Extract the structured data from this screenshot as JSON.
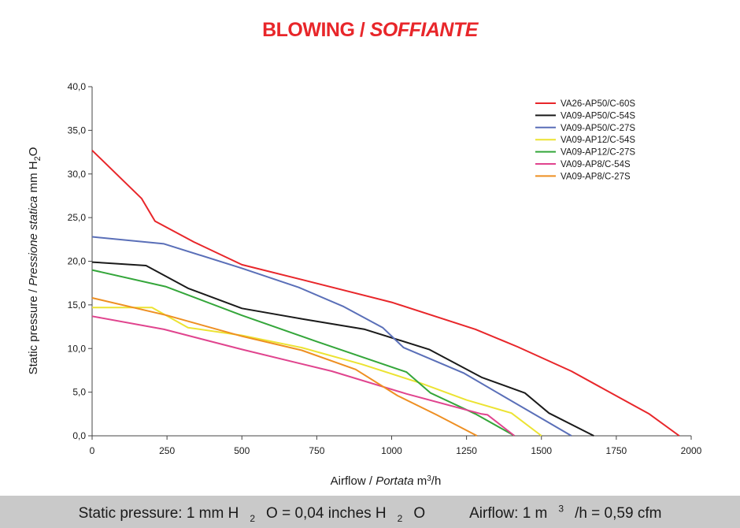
{
  "title": {
    "main": "BLOWING / ",
    "italic": "SOFFIANTE"
  },
  "chart_data": {
    "type": "line",
    "title": "BLOWING / SOFFIANTE",
    "xlabel": "Airflow / Portata m³/h",
    "ylabel": "Static pressure / Pressione statica mm H₂O",
    "xlim": [
      0,
      2000
    ],
    "ylim": [
      0,
      40
    ],
    "xticks": [
      "0",
      "250",
      "500",
      "750",
      "1000",
      "1250",
      "1500",
      "1750",
      "2000"
    ],
    "yticks": [
      "0,0",
      "5,0",
      "10,0",
      "15,0",
      "20,0",
      "25,0",
      "30,0",
      "35,0",
      "40,0"
    ],
    "grid": false,
    "legend": "top-right",
    "series": [
      {
        "name": "VA26-AP50/C-60S",
        "color": "#e8262a",
        "x": [
          0,
          165,
          210,
          340,
          500,
          700,
          1000,
          1280,
          1420,
          1600,
          1860,
          1960
        ],
        "y": [
          32.7,
          27.2,
          24.6,
          22.2,
          19.6,
          17.9,
          15.3,
          12.2,
          10.2,
          7.4,
          2.5,
          0
        ]
      },
      {
        "name": "VA09-AP50/C-54S",
        "color": "#1a1a1a",
        "x": [
          0,
          180,
          320,
          500,
          700,
          910,
          1125,
          1300,
          1445,
          1525,
          1675
        ],
        "y": [
          19.9,
          19.5,
          16.9,
          14.6,
          13.4,
          12.2,
          9.9,
          6.7,
          4.9,
          2.6,
          0
        ]
      },
      {
        "name": "VA09-AP50/C-27S",
        "color": "#5a6fb8",
        "x": [
          0,
          240,
          500,
          690,
          840,
          970,
          1040,
          1240,
          1500,
          1600
        ],
        "y": [
          22.8,
          22.0,
          19.2,
          17.0,
          14.8,
          12.4,
          10.1,
          7.2,
          2.0,
          0
        ]
      },
      {
        "name": "VA09-AP12/C-54S",
        "color": "#ece332",
        "x": [
          0,
          200,
          320,
          500,
          700,
          900,
          1100,
          1250,
          1400,
          1500
        ],
        "y": [
          14.7,
          14.7,
          12.4,
          11.5,
          10.1,
          8.2,
          6.0,
          4.1,
          2.6,
          0
        ]
      },
      {
        "name": "VA09-AP12/C-27S",
        "color": "#34a63a",
        "x": [
          0,
          245,
          500,
          750,
          1050,
          1130,
          1280,
          1410
        ],
        "y": [
          19.0,
          17.1,
          13.8,
          10.8,
          7.3,
          4.9,
          2.5,
          0
        ]
      },
      {
        "name": "VA09-AP8/C-54S",
        "color": "#e0448e",
        "x": [
          0,
          240,
          500,
          800,
          1050,
          1300,
          1320,
          1410
        ],
        "y": [
          13.7,
          12.2,
          9.9,
          7.4,
          4.8,
          2.5,
          2.4,
          0
        ]
      },
      {
        "name": "VA09-AP8/C-27S",
        "color": "#ee8f22",
        "x": [
          0,
          250,
          500,
          700,
          880,
          1020,
          1150,
          1285
        ],
        "y": [
          15.8,
          13.8,
          11.4,
          9.8,
          7.6,
          4.6,
          2.4,
          0
        ]
      }
    ]
  },
  "footer": {
    "pressure_label": "Static pressure: 1 mm H",
    "pressure_sub1": "2",
    "pressure_mid": "O = 0,04 inches H",
    "pressure_sub2": "2",
    "pressure_end": "O",
    "airflow_label": "Airflow: 1 m",
    "airflow_sup": "3",
    "airflow_end": "/h = 0,59 cfm"
  }
}
